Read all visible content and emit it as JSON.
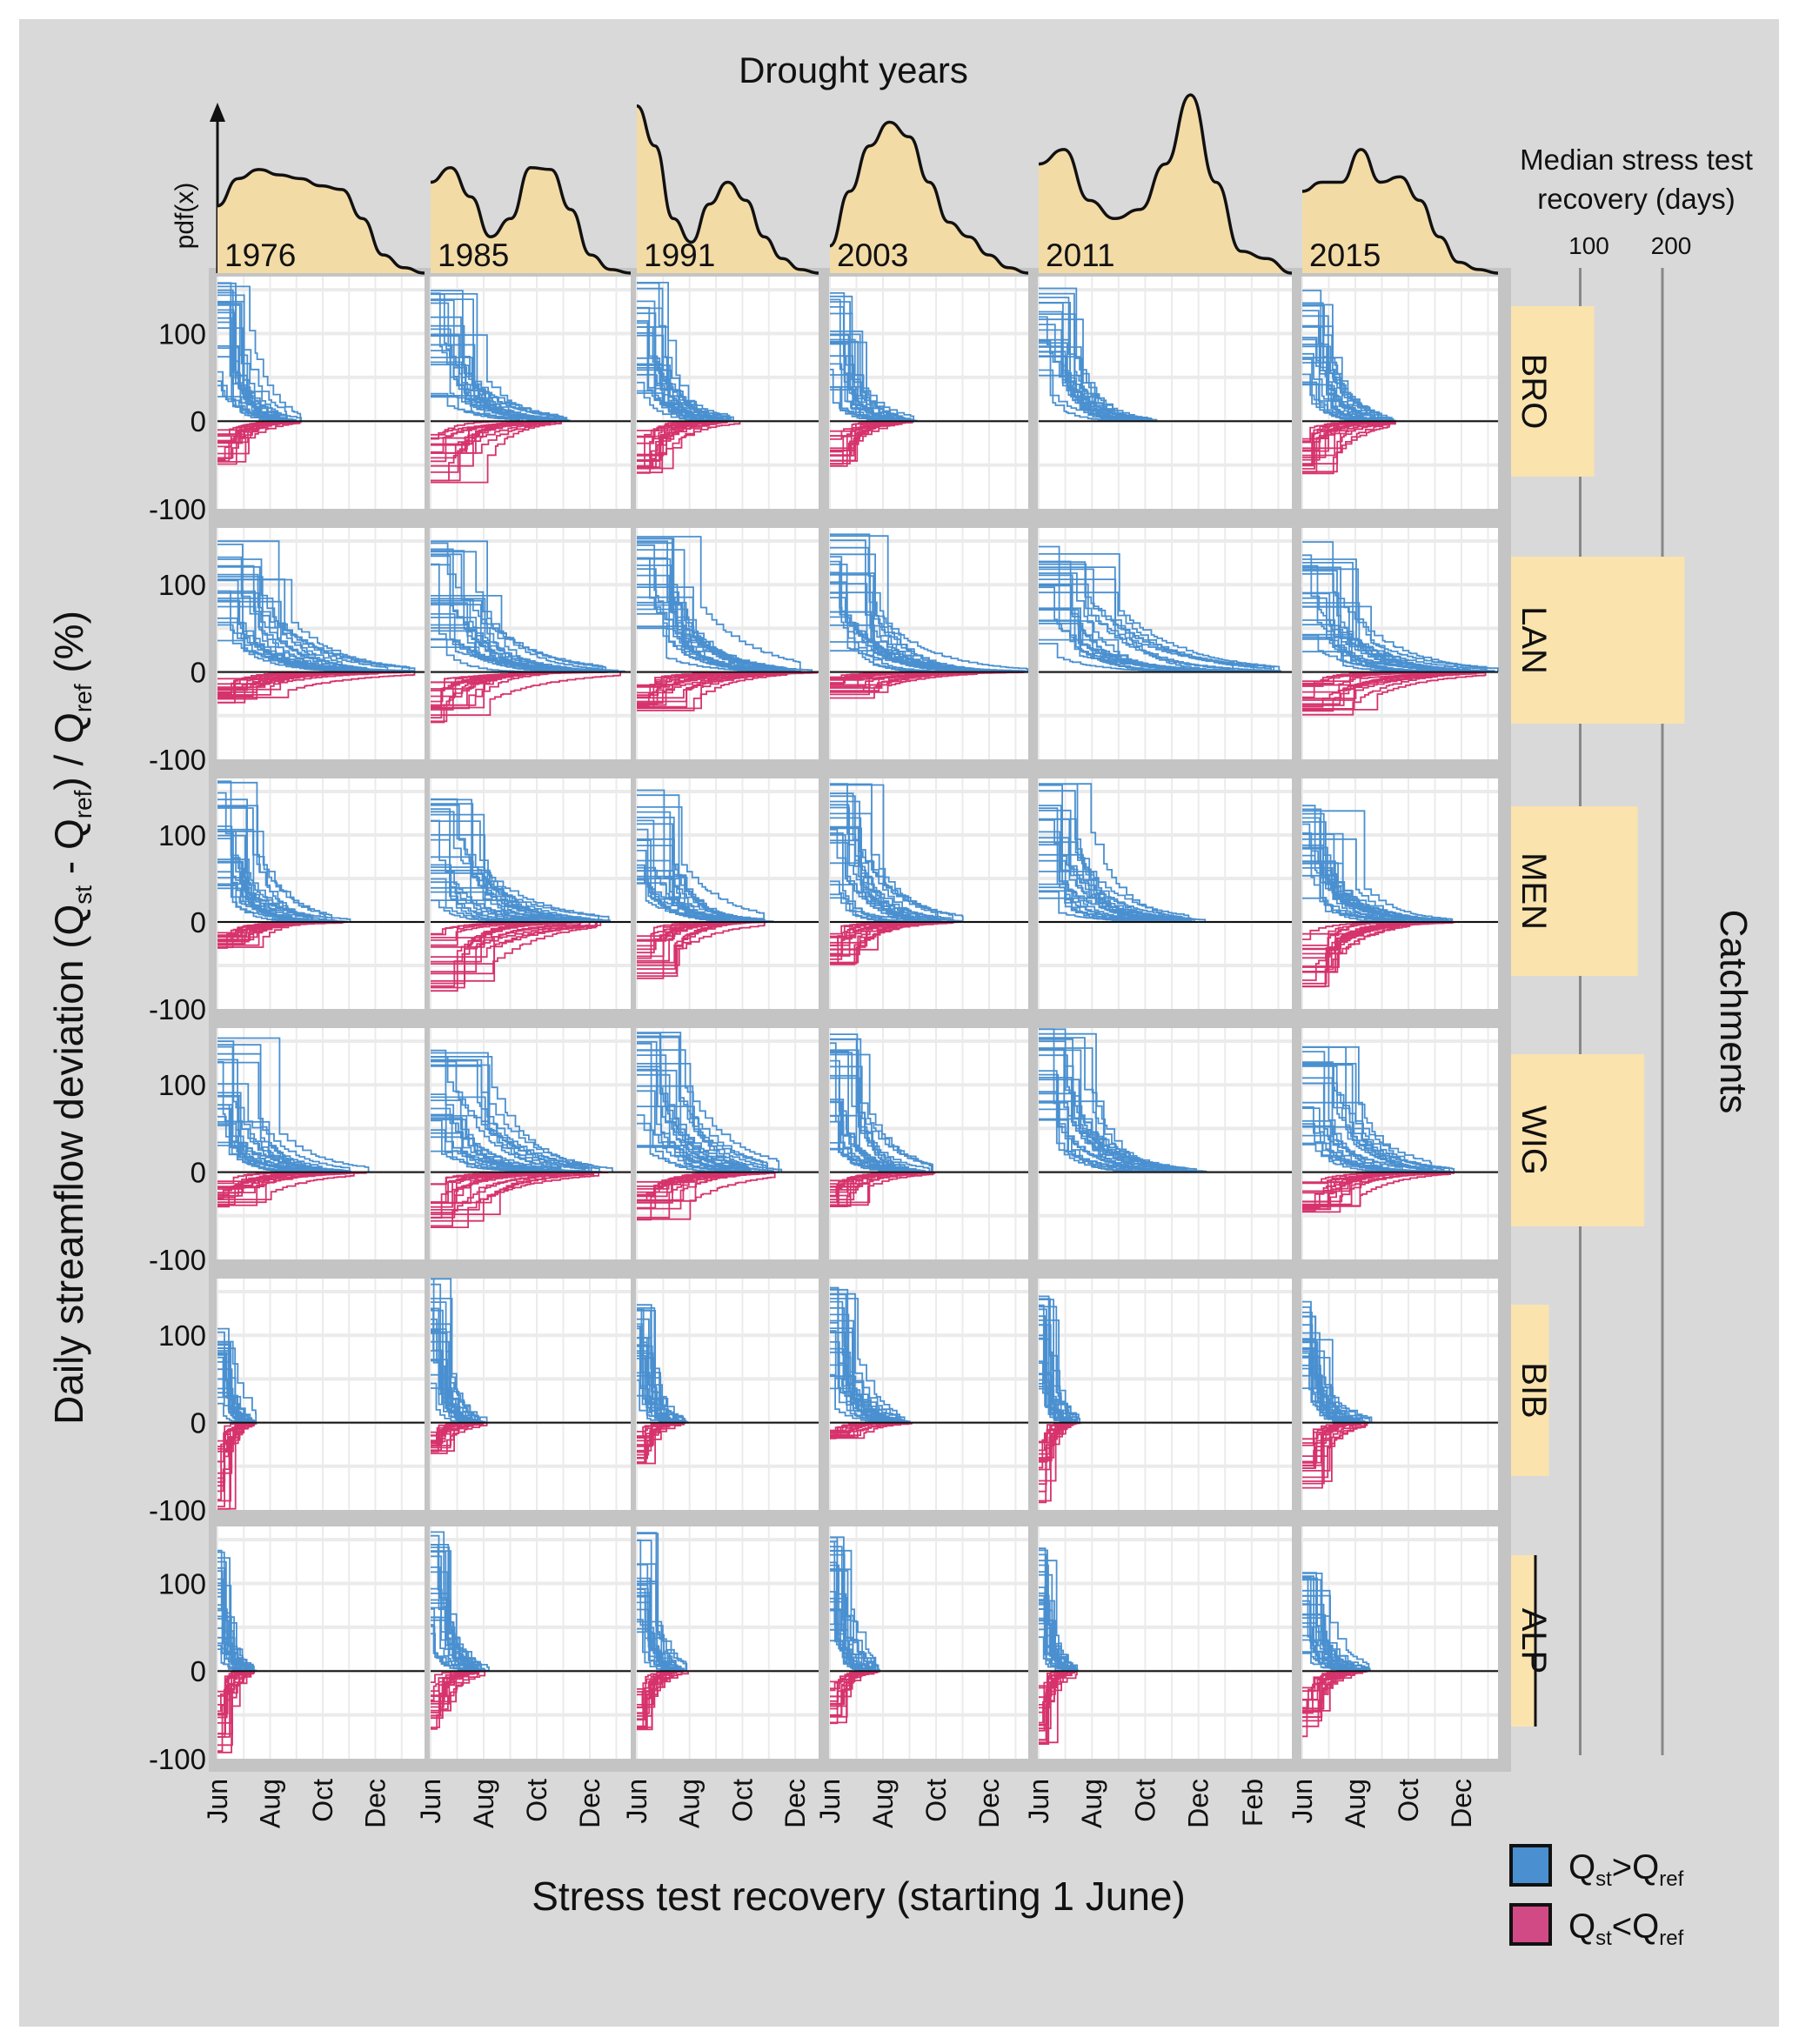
{
  "chart_data": {
    "type": "line",
    "title": "Drought years",
    "xlabel": "Stress test recovery (starting 1 June)",
    "ylabel": "Daily streamflow deviation (Q_st - Q_ref) / Q_ref (%)",
    "ylabel_parts": {
      "pre": "Daily streamflow deviation (Q",
      "st": "st",
      "mid": " - Q",
      "ref": "ref",
      "mid2": ") / Q",
      "ref2": "ref",
      "post": " (%)"
    },
    "ylim": [
      -100,
      165
    ],
    "yticks": [
      "100",
      "0",
      "-100"
    ],
    "ytick_values": [
      100,
      0,
      -100
    ],
    "grid": true,
    "density_axis_label": "pdf(x)",
    "years": [
      "1976",
      "1985",
      "1991",
      "2003",
      "2011",
      "2015"
    ],
    "year_xmax_days": [
      240,
      230,
      210,
      228,
      290,
      225
    ],
    "month_ticks": {
      "1976": [
        "Jun",
        "Aug",
        "Oct",
        "Dec"
      ],
      "1985": [
        "Jun",
        "Aug",
        "Oct",
        "Dec"
      ],
      "1991": [
        "Jun",
        "Aug",
        "Oct",
        "Dec"
      ],
      "2003": [
        "Jun",
        "Aug",
        "Oct",
        "Dec"
      ],
      "2011": [
        "Jun",
        "Aug",
        "Oct",
        "Dec",
        "Feb"
      ],
      "2015": [
        "Jun",
        "Aug",
        "Oct",
        "Dec"
      ]
    },
    "density": {
      "1976": [
        0.37,
        0.52,
        0.57,
        0.54,
        0.52,
        0.48,
        0.46,
        0.3,
        0.1,
        0.03,
        0
      ],
      "1985": [
        0.5,
        0.58,
        0.42,
        0.2,
        0.3,
        0.58,
        0.57,
        0.35,
        0.1,
        0.02,
        0
      ],
      "1991": [
        0.92,
        0.7,
        0.3,
        0.17,
        0.38,
        0.5,
        0.4,
        0.2,
        0.08,
        0.02,
        0
      ],
      "2003": [
        0.15,
        0.45,
        0.7,
        0.83,
        0.75,
        0.5,
        0.28,
        0.2,
        0.1,
        0.03,
        0
      ],
      "2011": [
        0.6,
        0.68,
        0.4,
        0.3,
        0.35,
        0.6,
        0.98,
        0.5,
        0.12,
        0.08,
        0
      ],
      "2015": [
        0.45,
        0.5,
        0.5,
        0.68,
        0.5,
        0.53,
        0.4,
        0.2,
        0.06,
        0.02,
        0
      ]
    },
    "catchments": [
      "BRO",
      "LAN",
      "MEN",
      "WIG",
      "BIB",
      "ALP"
    ],
    "catchment_axis_label": "Catchments",
    "median_recovery": {
      "title_line1": "Median stress test",
      "title_line2": "recovery (days)",
      "ticks": [
        "100",
        "200"
      ],
      "tick_values": [
        100,
        200
      ],
      "values": [
        117,
        227,
        170,
        178,
        62,
        46
      ]
    },
    "panels_summary_note_fields": [
      "max_pos_pct",
      "min_neg_pct",
      "recovery_days"
    ],
    "panels": {
      "BRO": [
        [
          160,
          -50,
          97
        ],
        [
          150,
          -75,
          160
        ],
        [
          160,
          -60,
          120
        ],
        [
          160,
          -55,
          100
        ],
        [
          160,
          0,
          140
        ],
        [
          150,
          -60,
          108
        ]
      ],
      "LAN": [
        [
          150,
          -40,
          230
        ],
        [
          150,
          -60,
          230
        ],
        [
          160,
          -45,
          210
        ],
        [
          160,
          -30,
          228
        ],
        [
          160,
          0,
          290
        ],
        [
          150,
          -50,
          225
        ]
      ],
      "MEN": [
        [
          165,
          -30,
          157
        ],
        [
          150,
          -80,
          210
        ],
        [
          160,
          -70,
          160
        ],
        [
          165,
          -50,
          155
        ],
        [
          165,
          0,
          193
        ],
        [
          140,
          -75,
          175
        ]
      ],
      "WIG": [
        [
          160,
          -40,
          177
        ],
        [
          140,
          -70,
          210
        ],
        [
          160,
          -55,
          168
        ],
        [
          160,
          -40,
          126
        ],
        [
          165,
          0,
          193
        ],
        [
          145,
          -50,
          175
        ]
      ],
      "BIB": [
        [
          110,
          -100,
          45
        ],
        [
          165,
          -40,
          67
        ],
        [
          140,
          -50,
          60
        ],
        [
          160,
          -20,
          96
        ],
        [
          150,
          -95,
          48
        ],
        [
          140,
          -80,
          81
        ]
      ],
      "ALP": [
        [
          140,
          -100,
          45
        ],
        [
          160,
          -70,
          67
        ],
        [
          160,
          -70,
          60
        ],
        [
          160,
          -60,
          58
        ],
        [
          140,
          -85,
          45
        ],
        [
          115,
          -75,
          78
        ]
      ]
    },
    "legend": [
      {
        "label_main": "Q",
        "sub1": "st",
        "op": ">",
        "label_main2": "Q",
        "sub2": "ref",
        "color": "#4a90d0"
      },
      {
        "label_main": "Q",
        "sub1": "st",
        "op": "<",
        "label_main2": "Q",
        "sub2": "ref",
        "color": "#d6336c"
      }
    ],
    "colors": {
      "positive": "#4a90d0",
      "negative": "#d6336c",
      "density_fill": "#f3dba6",
      "bar_fill": "#fae3ad",
      "background": "#d9d9d9"
    }
  }
}
